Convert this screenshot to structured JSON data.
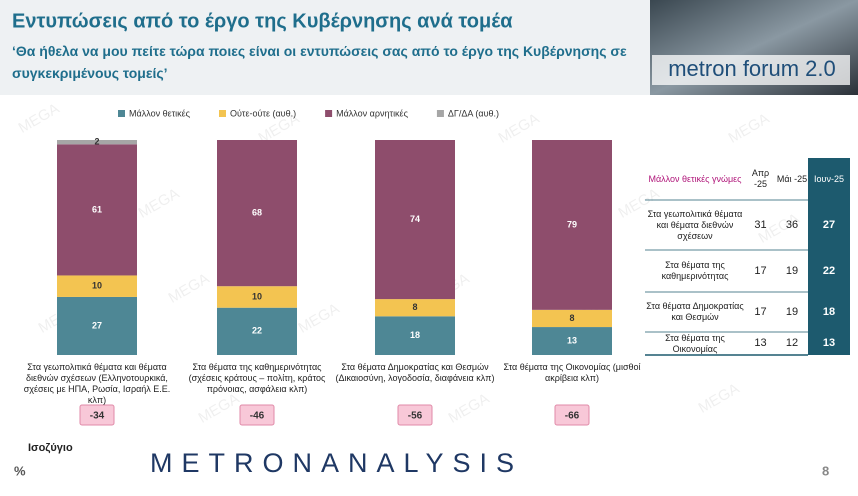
{
  "header": {
    "title": "Εντυπώσεις από το έργο της Κυβέρνησης ανά τομέα",
    "subtitle": "‘Θα ήθελα να μου πείτε τώρα ποιες είναι οι εντυπώσεις σας από το έργο της Κυβέρνησης σε συγκεκριμένους τομείς’",
    "logo": "metron forum 2.0"
  },
  "watermark": "MEGA",
  "chart_data": {
    "type": "stacked_bar",
    "categories": [
      "Στα γεωπολιτικά θέματα και θέματα διεθνών σχέσεων (Ελληνοτουρκικά, σχέσεις με ΗΠΑ, Ρωσία, Ισραήλ Ε.Ε. κλπ)",
      "Στα θέματα της καθημερινότητας (σχέσεις κράτους – πολίτη, κράτος πρόνοιας, ασφάλεια κλπ)",
      "Στα θέματα Δημοκρατίας και Θεσμών (Δικαιοσύνη, λογοδοσία, διαφάνεια κλπ)",
      "Στα θέματα της Οικονομίας (μισθοί ακρίβεια κλπ)"
    ],
    "series": [
      {
        "name": "Μάλλον θετικές",
        "color": "#4e8795",
        "values": [
          27,
          22,
          18,
          13
        ]
      },
      {
        "name": "Ούτε-ούτε  (αυθ.)",
        "color": "#f3c451",
        "values": [
          10,
          10,
          8,
          8
        ]
      },
      {
        "name": "Μάλλον αρνητικές",
        "color": "#8e4d6c",
        "values": [
          61,
          68,
          74,
          79
        ]
      },
      {
        "name": "ΔΓ/ΔΑ (αυθ.)",
        "color": "#a6a6a6",
        "values": [
          2,
          null,
          null,
          null
        ]
      }
    ],
    "balance_label": "Ισοζύγιο",
    "balance": [
      -34,
      -46,
      -56,
      -66
    ],
    "unit": "%"
  },
  "table": {
    "header": [
      "Μάλλον θετικές γνώμες",
      "Απρ -25",
      "Μάι -25",
      "Ιουν-25"
    ],
    "rows": [
      [
        "Στα γεωπολιτικά θέματα και θέματα διεθνών σχέσεων",
        "31",
        "36",
        "27"
      ],
      [
        "Στα θέματα της καθημερινότητας",
        "17",
        "19",
        "22"
      ],
      [
        "Στα θέματα Δημοκρατίας και Θεσμών",
        "17",
        "19",
        "18"
      ],
      [
        "Στα θέματα της Οικονομίας",
        "13",
        "12",
        "13"
      ]
    ]
  },
  "footer": {
    "brand": "METRONANALYSIS",
    "page": "8"
  }
}
